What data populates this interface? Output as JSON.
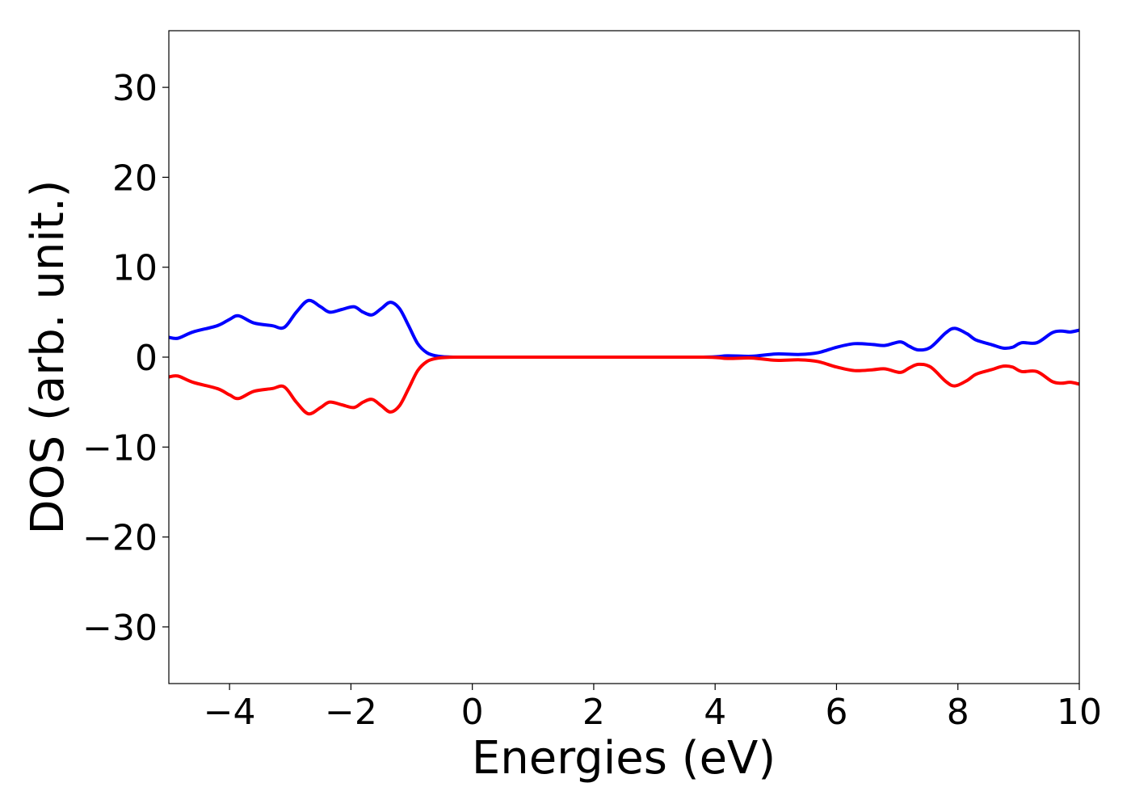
{
  "chart_data": {
    "type": "line",
    "title": "",
    "xlabel": "Energies (eV)",
    "ylabel": "DOS (arb. unit.)",
    "xlim": [
      -5,
      10
    ],
    "ylim": [
      -36.3,
      36.3
    ],
    "xticks": [
      -4,
      -2,
      0,
      2,
      4,
      6,
      8,
      10
    ],
    "xtick_labels": [
      "−4",
      "−2",
      "0",
      "2",
      "4",
      "6",
      "8",
      "10"
    ],
    "yticks": [
      30,
      20,
      10,
      0,
      -10,
      -20,
      -30
    ],
    "ytick_labels": [
      "30",
      "20",
      "10",
      "0",
      "−10",
      "−20",
      "−30"
    ],
    "grid": false,
    "legend": "none",
    "series": [
      {
        "color": "#0000ff",
        "points": [
          [
            -5.0,
            2.2
          ],
          [
            -4.85,
            2.1
          ],
          [
            -4.6,
            2.8
          ],
          [
            -4.2,
            3.5
          ],
          [
            -4.0,
            4.2
          ],
          [
            -3.85,
            4.6
          ],
          [
            -3.6,
            3.8
          ],
          [
            -3.3,
            3.5
          ],
          [
            -3.1,
            3.3
          ],
          [
            -2.9,
            5.0
          ],
          [
            -2.7,
            6.3
          ],
          [
            -2.5,
            5.6
          ],
          [
            -2.35,
            5.0
          ],
          [
            -2.15,
            5.3
          ],
          [
            -1.95,
            5.6
          ],
          [
            -1.8,
            5.0
          ],
          [
            -1.65,
            4.7
          ],
          [
            -1.5,
            5.4
          ],
          [
            -1.35,
            6.1
          ],
          [
            -1.2,
            5.4
          ],
          [
            -1.05,
            3.5
          ],
          [
            -0.9,
            1.5
          ],
          [
            -0.75,
            0.5
          ],
          [
            -0.6,
            0.15
          ],
          [
            -0.4,
            0.02
          ],
          [
            0.0,
            0.0
          ],
          [
            2.0,
            0.0
          ],
          [
            3.8,
            0.0
          ],
          [
            4.2,
            0.15
          ],
          [
            4.6,
            0.1
          ],
          [
            5.0,
            0.35
          ],
          [
            5.4,
            0.3
          ],
          [
            5.7,
            0.5
          ],
          [
            6.0,
            1.1
          ],
          [
            6.3,
            1.5
          ],
          [
            6.6,
            1.4
          ],
          [
            6.8,
            1.3
          ],
          [
            7.05,
            1.7
          ],
          [
            7.2,
            1.2
          ],
          [
            7.35,
            0.8
          ],
          [
            7.55,
            1.1
          ],
          [
            7.8,
            2.7
          ],
          [
            7.95,
            3.2
          ],
          [
            8.15,
            2.6
          ],
          [
            8.3,
            1.9
          ],
          [
            8.55,
            1.4
          ],
          [
            8.75,
            1.0
          ],
          [
            8.9,
            1.1
          ],
          [
            9.05,
            1.6
          ],
          [
            9.3,
            1.6
          ],
          [
            9.55,
            2.7
          ],
          [
            9.7,
            2.9
          ],
          [
            9.85,
            2.8
          ],
          [
            10.0,
            3.0
          ]
        ]
      },
      {
        "color": "#ff0000",
        "points": [
          [
            -5.0,
            -2.2
          ],
          [
            -4.85,
            -2.1
          ],
          [
            -4.6,
            -2.8
          ],
          [
            -4.2,
            -3.5
          ],
          [
            -4.0,
            -4.2
          ],
          [
            -3.85,
            -4.6
          ],
          [
            -3.6,
            -3.8
          ],
          [
            -3.3,
            -3.5
          ],
          [
            -3.1,
            -3.3
          ],
          [
            -2.9,
            -5.0
          ],
          [
            -2.7,
            -6.3
          ],
          [
            -2.5,
            -5.6
          ],
          [
            -2.35,
            -5.0
          ],
          [
            -2.15,
            -5.3
          ],
          [
            -1.95,
            -5.6
          ],
          [
            -1.8,
            -5.0
          ],
          [
            -1.65,
            -4.7
          ],
          [
            -1.5,
            -5.4
          ],
          [
            -1.35,
            -6.1
          ],
          [
            -1.2,
            -5.4
          ],
          [
            -1.05,
            -3.5
          ],
          [
            -0.9,
            -1.5
          ],
          [
            -0.75,
            -0.5
          ],
          [
            -0.6,
            -0.15
          ],
          [
            -0.4,
            -0.02
          ],
          [
            0.0,
            0.0
          ],
          [
            2.0,
            0.0
          ],
          [
            3.8,
            0.0
          ],
          [
            4.2,
            -0.15
          ],
          [
            4.6,
            -0.1
          ],
          [
            5.0,
            -0.35
          ],
          [
            5.4,
            -0.3
          ],
          [
            5.7,
            -0.5
          ],
          [
            6.0,
            -1.1
          ],
          [
            6.3,
            -1.5
          ],
          [
            6.6,
            -1.4
          ],
          [
            6.8,
            -1.3
          ],
          [
            7.05,
            -1.7
          ],
          [
            7.2,
            -1.2
          ],
          [
            7.35,
            -0.8
          ],
          [
            7.55,
            -1.1
          ],
          [
            7.8,
            -2.7
          ],
          [
            7.95,
            -3.2
          ],
          [
            8.15,
            -2.6
          ],
          [
            8.3,
            -1.9
          ],
          [
            8.55,
            -1.4
          ],
          [
            8.75,
            -1.0
          ],
          [
            8.9,
            -1.1
          ],
          [
            9.05,
            -1.6
          ],
          [
            9.3,
            -1.6
          ],
          [
            9.55,
            -2.7
          ],
          [
            9.7,
            -2.9
          ],
          [
            9.85,
            -2.8
          ],
          [
            10.0,
            -3.0
          ]
        ]
      }
    ]
  }
}
